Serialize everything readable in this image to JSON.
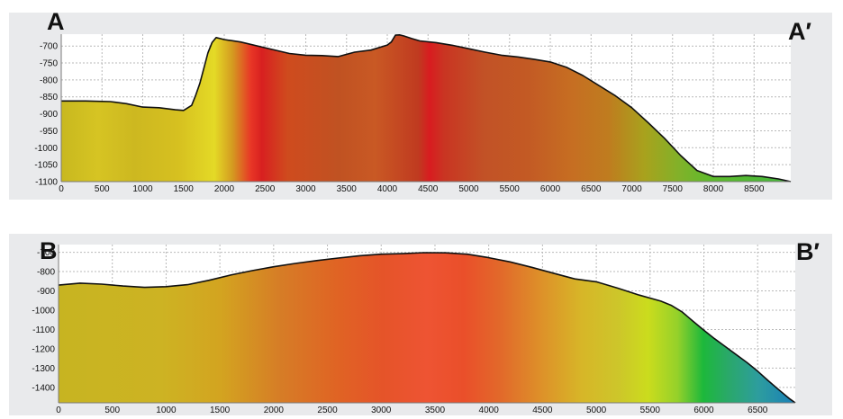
{
  "chart_data": [
    {
      "type": "area",
      "start_label": "A",
      "end_label": "A′",
      "x_ticks": [
        0,
        500,
        1000,
        1500,
        2000,
        2500,
        3000,
        3500,
        4000,
        4500,
        5000,
        5500,
        6000,
        6500,
        7000,
        7500,
        8000,
        8500
      ],
      "y_ticks": [
        -700,
        -750,
        -800,
        -850,
        -900,
        -950,
        -1000,
        -1050,
        -1100
      ],
      "xlim": [
        0,
        8950
      ],
      "ylim": [
        -1100,
        -665
      ],
      "grid": true,
      "series": [
        {
          "x": [
            0,
            300,
            600,
            800,
            1000,
            1200,
            1400,
            1500,
            1600,
            1650,
            1700,
            1750,
            1800,
            1850,
            1900,
            1950,
            2000,
            2200,
            2500,
            2800,
            3000,
            3200,
            3400,
            3600,
            3800,
            4000,
            4050,
            4100,
            4150,
            4200,
            4300,
            4400,
            4600,
            4800,
            5000,
            5200,
            5400,
            5600,
            5800,
            6000,
            6200,
            6400,
            6600,
            6800,
            7000,
            7200,
            7400,
            7600,
            7800,
            8000,
            8200,
            8400,
            8600,
            8800,
            8950
          ],
          "y": [
            -862,
            -862,
            -864,
            -870,
            -880,
            -882,
            -888,
            -890,
            -875,
            -845,
            -810,
            -765,
            -720,
            -690,
            -675,
            -678,
            -681,
            -688,
            -705,
            -722,
            -727,
            -728,
            -731,
            -718,
            -712,
            -697,
            -688,
            -668,
            -667,
            -670,
            -678,
            -685,
            -690,
            -698,
            -708,
            -718,
            -727,
            -732,
            -739,
            -747,
            -763,
            -787,
            -817,
            -847,
            -882,
            -926,
            -972,
            -1023,
            -1067,
            -1085,
            -1085,
            -1082,
            -1085,
            -1092,
            -1100
          ]
        }
      ],
      "color_stops": [
        [
          "0",
          "#c8b81f"
        ],
        [
          "0.05",
          "#d6c423"
        ],
        [
          "0.1",
          "#cdb820"
        ],
        [
          "0.16",
          "#d6c020"
        ],
        [
          "0.21",
          "#e4da26"
        ],
        [
          "0.235",
          "#d49a20"
        ],
        [
          "0.26",
          "#e83626"
        ],
        [
          "0.275",
          "#d82020"
        ],
        [
          "0.31",
          "#cf4b1e"
        ],
        [
          "0.38",
          "#c05222"
        ],
        [
          "0.43",
          "#c95924"
        ],
        [
          "0.49",
          "#c03a20"
        ],
        [
          "0.505",
          "#d81c20"
        ],
        [
          "0.525",
          "#c93522"
        ],
        [
          "0.58",
          "#c25226"
        ],
        [
          "0.64",
          "#c35a24"
        ],
        [
          "0.7",
          "#c66e22"
        ],
        [
          "0.75",
          "#bf7c1f"
        ],
        [
          "0.8",
          "#a8a21d"
        ],
        [
          "0.85",
          "#7fb22a"
        ],
        [
          "0.89",
          "#5fbb2c"
        ],
        [
          "1",
          "#44b63d"
        ]
      ]
    },
    {
      "type": "area",
      "start_label": "B",
      "end_label": "B′",
      "x_ticks": [
        0,
        500,
        1000,
        1500,
        2000,
        2500,
        3000,
        3500,
        4000,
        4500,
        5000,
        5500,
        6000,
        6500
      ],
      "y_ticks": [
        -700,
        -800,
        -900,
        -1000,
        -1100,
        -1200,
        -1300,
        -1400
      ],
      "xlim": [
        0,
        6850
      ],
      "ylim": [
        -1480,
        -660
      ],
      "grid": true,
      "series": [
        {
          "x": [
            0,
            200,
            400,
            600,
            800,
            1000,
            1200,
            1400,
            1600,
            1800,
            2000,
            2200,
            2400,
            2600,
            2800,
            3000,
            3200,
            3400,
            3600,
            3800,
            4000,
            4200,
            4400,
            4600,
            4800,
            5000,
            5200,
            5400,
            5600,
            5700,
            5800,
            5900,
            6000,
            6100,
            6200,
            6300,
            6400,
            6500,
            6600,
            6700,
            6800,
            6850
          ],
          "y": [
            -870,
            -860,
            -865,
            -875,
            -882,
            -878,
            -868,
            -845,
            -818,
            -795,
            -775,
            -758,
            -743,
            -730,
            -718,
            -710,
            -707,
            -702,
            -703,
            -710,
            -728,
            -750,
            -778,
            -808,
            -838,
            -853,
            -886,
            -922,
            -953,
            -976,
            -1010,
            -1058,
            -1104,
            -1148,
            -1189,
            -1230,
            -1271,
            -1316,
            -1366,
            -1414,
            -1460,
            -1480
          ]
        }
      ],
      "color_stops": [
        [
          "0",
          "#c7b421"
        ],
        [
          "0.14",
          "#cdb323"
        ],
        [
          "0.22",
          "#d3a420"
        ],
        [
          "0.3",
          "#d67d26"
        ],
        [
          "0.38",
          "#e06324"
        ],
        [
          "0.44",
          "#e55429"
        ],
        [
          "0.5",
          "#ee5433"
        ],
        [
          "0.55",
          "#ea4f2a"
        ],
        [
          "0.6",
          "#e2692a"
        ],
        [
          "0.66",
          "#dd9429"
        ],
        [
          "0.71",
          "#d7b628"
        ],
        [
          "0.76",
          "#cdc62a"
        ],
        [
          "0.8",
          "#cbdc1d"
        ],
        [
          "0.84",
          "#95d12a"
        ],
        [
          "0.875",
          "#1db83b"
        ],
        [
          "0.91",
          "#2aa86b"
        ],
        [
          "0.95",
          "#2d9d9e"
        ],
        [
          "1",
          "#1a7fb9"
        ]
      ]
    }
  ]
}
